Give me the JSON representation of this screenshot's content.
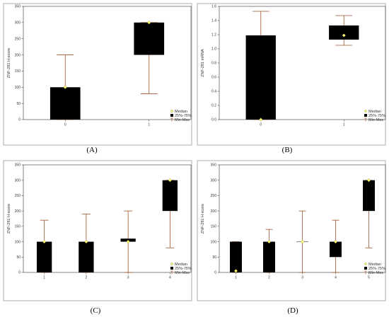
{
  "chart_data": [
    {
      "type": "box",
      "panel_label": "(A)",
      "ylabel": "ZNF-281 H-score",
      "xlabel": "",
      "ylim": [
        0,
        350
      ],
      "yticks": [
        0,
        50,
        100,
        150,
        200,
        250,
        300,
        350
      ],
      "categories": [
        "0",
        "1"
      ],
      "boxes": [
        {
          "min": 0,
          "q1": 0,
          "median": 100,
          "q3": 100,
          "max": 200
        },
        {
          "min": 80,
          "q1": 200,
          "median": 300,
          "q3": 300,
          "max": 300
        }
      ],
      "legend": [
        "Median",
        "25%-75%",
        "Min-Max"
      ],
      "grid": false
    },
    {
      "type": "box",
      "panel_label": "(B)",
      "ylabel": "ZNF-281 mRNA",
      "xlabel": "",
      "ylim": [
        0,
        1.6
      ],
      "yticks": [
        0.0,
        0.2,
        0.4,
        0.6,
        0.8,
        1.0,
        1.2,
        1.4,
        1.6
      ],
      "ytick_labels": [
        "0.0",
        "0.2",
        "0.4",
        "0.6",
        "0.8",
        "1.0",
        "1.2",
        "1.4",
        "1.6"
      ],
      "categories": [
        "0",
        "1"
      ],
      "boxes": [
        {
          "min": 0,
          "q1": 0,
          "median": 0,
          "q3": 1.19,
          "max": 1.53
        },
        {
          "min": 1.05,
          "q1": 1.13,
          "median": 1.19,
          "q3": 1.33,
          "max": 1.47
        }
      ],
      "legend": [
        "Median",
        "25%-75%",
        "Min-Max"
      ],
      "grid": false
    },
    {
      "type": "box",
      "panel_label": "(C)",
      "ylabel": "ZNF-281 H-score",
      "xlabel": "",
      "ylim": [
        0,
        350
      ],
      "yticks": [
        0,
        50,
        100,
        150,
        200,
        250,
        300,
        350
      ],
      "categories": [
        "1",
        "2",
        "3",
        "4"
      ],
      "boxes": [
        {
          "min": 0,
          "q1": 0,
          "median": 100,
          "q3": 100,
          "max": 170
        },
        {
          "min": 0,
          "q1": 0,
          "median": 100,
          "q3": 100,
          "max": 190
        },
        {
          "min": 0,
          "q1": 100,
          "median": 100,
          "q3": 110,
          "max": 200
        },
        {
          "min": 80,
          "q1": 200,
          "median": 300,
          "q3": 300,
          "max": 300
        }
      ],
      "legend": [
        "Median",
        "25%-75%",
        "Min-Max"
      ],
      "grid": false
    },
    {
      "type": "box",
      "panel_label": "(D)",
      "ylabel": "ZNF-281 H-score",
      "xlabel": "",
      "ylim": [
        0,
        350
      ],
      "yticks": [
        0,
        50,
        100,
        150,
        200,
        250,
        300,
        350
      ],
      "categories": [
        "1",
        "2",
        "3",
        "4",
        "5"
      ],
      "boxes": [
        {
          "min": 0,
          "q1": 0,
          "median": 5,
          "q3": 100,
          "max": 100
        },
        {
          "min": 0,
          "q1": 0,
          "median": 100,
          "q3": 100,
          "max": 140
        },
        {
          "min": 0,
          "q1": 100,
          "median": 100,
          "q3": 100,
          "max": 200
        },
        {
          "min": 0,
          "q1": 50,
          "median": 100,
          "q3": 100,
          "max": 170
        },
        {
          "min": 80,
          "q1": 200,
          "median": 300,
          "q3": 300,
          "max": 300
        }
      ],
      "legend": [
        "Median",
        "25%-75%",
        "Min-Max"
      ],
      "grid": false
    }
  ],
  "colors": {
    "box_fill": "#000000",
    "whisker": "#a0522d",
    "median_fill": "#ffff66",
    "median_stroke": "#555555",
    "frame": "#999999"
  }
}
